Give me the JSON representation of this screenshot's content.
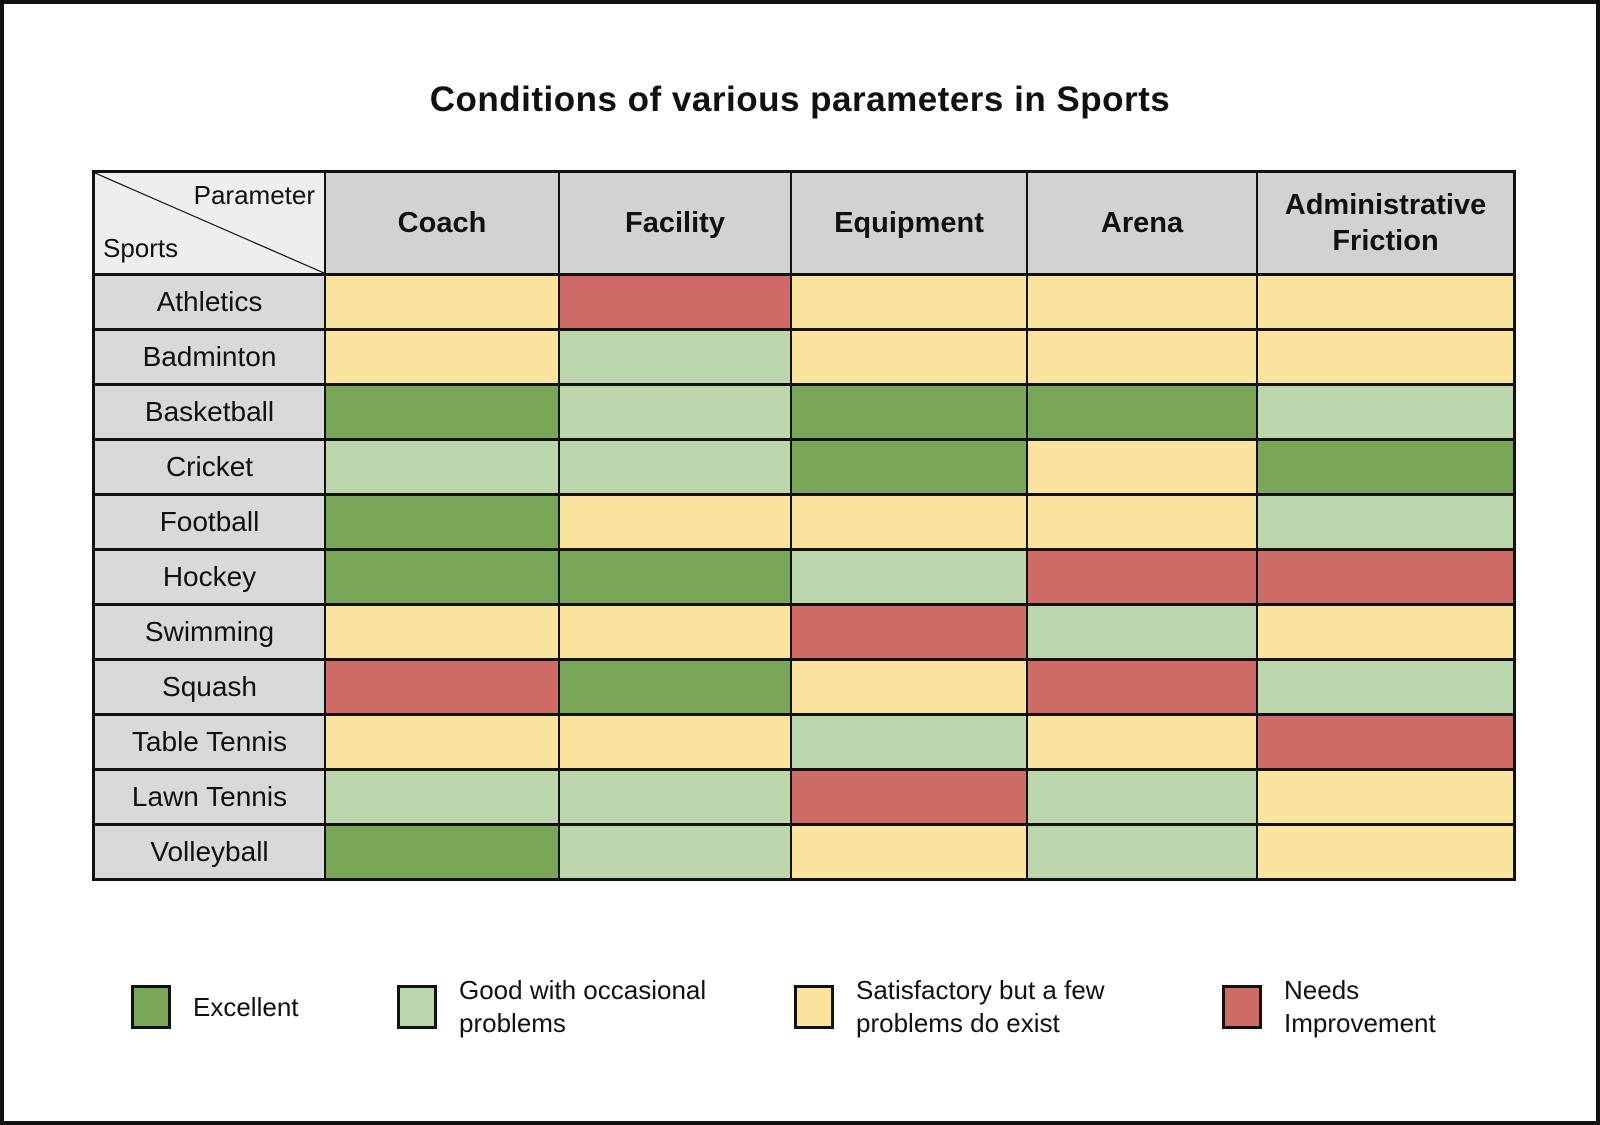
{
  "title": "Conditions of various parameters in Sports",
  "corner": {
    "top_label": "Parameter",
    "bottom_label": "Sports"
  },
  "chart_data": {
    "type": "heatmap",
    "title": "Conditions of various parameters in Sports",
    "columns": [
      "Coach",
      "Facility",
      "Equipment",
      "Arena",
      "Administrative Friction"
    ],
    "rows": [
      "Athletics",
      "Badminton",
      "Basketball",
      "Cricket",
      "Football",
      "Hockey",
      "Swimming",
      "Squash",
      "Table Tennis",
      "Lawn Tennis",
      "Volleyball"
    ],
    "values": [
      [
        "satisfactory",
        "needs_improvement",
        "satisfactory",
        "satisfactory",
        "satisfactory"
      ],
      [
        "satisfactory",
        "good",
        "satisfactory",
        "satisfactory",
        "satisfactory"
      ],
      [
        "excellent",
        "good",
        "excellent",
        "excellent",
        "good"
      ],
      [
        "good",
        "good",
        "excellent",
        "satisfactory",
        "excellent"
      ],
      [
        "excellent",
        "satisfactory",
        "satisfactory",
        "satisfactory",
        "good"
      ],
      [
        "excellent",
        "excellent",
        "good",
        "needs_improvement",
        "needs_improvement"
      ],
      [
        "satisfactory",
        "satisfactory",
        "needs_improvement",
        "good",
        "satisfactory"
      ],
      [
        "needs_improvement",
        "excellent",
        "satisfactory",
        "needs_improvement",
        "good"
      ],
      [
        "satisfactory",
        "satisfactory",
        "good",
        "satisfactory",
        "needs_improvement"
      ],
      [
        "good",
        "good",
        "needs_improvement",
        "good",
        "satisfactory"
      ],
      [
        "excellent",
        "good",
        "satisfactory",
        "good",
        "satisfactory"
      ]
    ],
    "scale": {
      "excellent": {
        "label": "Excellent",
        "color": "#7aa65a"
      },
      "good": {
        "label": "Good with occasional problems",
        "color": "#bcd5aa"
      },
      "satisfactory": {
        "label": "Satisfactory but a few problems do exist",
        "color": "#fae39c"
      },
      "needs_improvement": {
        "label": "Needs Improvement",
        "color": "#cd6b66"
      }
    },
    "legend_position": "bottom",
    "grid": true
  },
  "legend": {
    "items": [
      {
        "key": "excellent",
        "color": "#7aa65a",
        "lines": [
          "Excellent"
        ]
      },
      {
        "key": "good",
        "color": "#bcd5aa",
        "lines": [
          "Good with occasional",
          "problems"
        ]
      },
      {
        "key": "satisfactory",
        "color": "#fae39c",
        "lines": [
          "Satisfactory but a few",
          "problems do exist"
        ]
      },
      {
        "key": "needs_improvement",
        "color": "#cd6b66",
        "lines": [
          "Needs",
          "Improvement"
        ]
      }
    ]
  }
}
